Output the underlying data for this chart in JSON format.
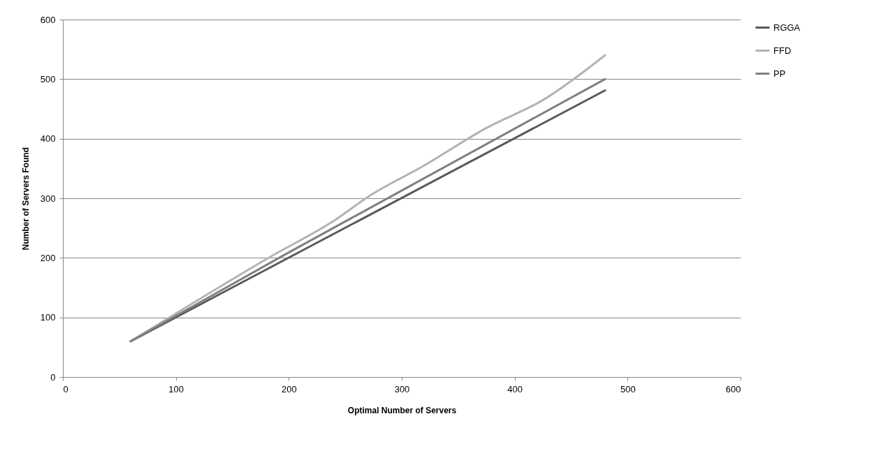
{
  "chart_data": {
    "type": "line",
    "xlabel": "Optimal Number of Servers",
    "ylabel": "Number of Servers Found",
    "xlim": [
      0,
      600
    ],
    "xticks": [
      0,
      100,
      200,
      300,
      400,
      500,
      600
    ],
    "ylim": [
      0,
      600
    ],
    "yticks": [
      0,
      100,
      200,
      300,
      400,
      500,
      600
    ],
    "grid": "y",
    "legend": "right",
    "marker": "none",
    "line_style": "solid",
    "series": [
      {
        "name": "RGGA",
        "color": "#595959",
        "x": [
          60,
          480
        ],
        "values": [
          60,
          481
        ]
      },
      {
        "name": "FFD",
        "color": "#b3b3b3",
        "x": [
          60,
          183,
          243,
          269,
          320,
          374,
          426,
          480
        ],
        "values": [
          60,
          201,
          266,
          301,
          355,
          417,
          466,
          540
        ]
      },
      {
        "name": "PP",
        "color": "#7f7f7f",
        "x": [
          60,
          198,
          480
        ],
        "values": [
          60,
          207,
          500
        ]
      }
    ]
  }
}
